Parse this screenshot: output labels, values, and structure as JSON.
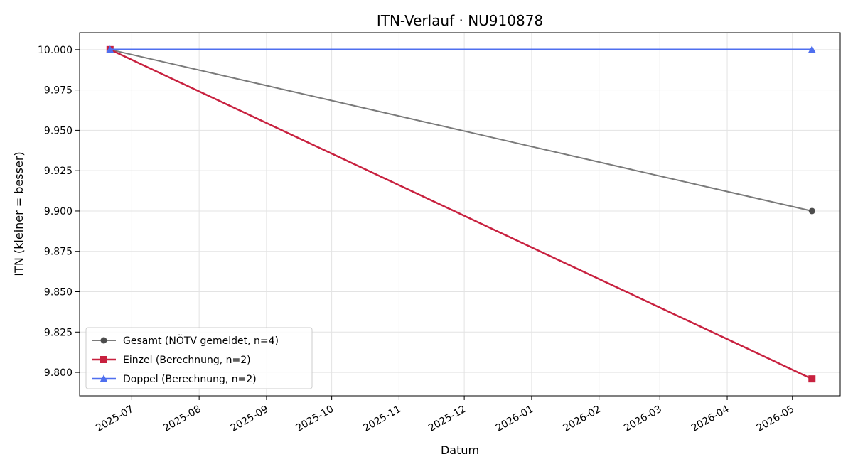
{
  "chart_data": {
    "type": "line",
    "title": "ITN-Verlauf · NU910878",
    "xlabel": "Datum",
    "ylabel": "ITN  (kleiner = besser)",
    "xlim": [
      "2025-06-07",
      "2026-05-23"
    ],
    "ylim": [
      9.7855,
      10.0105
    ],
    "x_ticks": [
      "2025-07",
      "2025-08",
      "2025-09",
      "2025-10",
      "2025-11",
      "2025-12",
      "2026-01",
      "2026-02",
      "2026-03",
      "2026-04",
      "2026-05"
    ],
    "y_ticks": [
      "10.000",
      "9.975",
      "9.950",
      "9.925",
      "9.900",
      "9.875",
      "9.850",
      "9.825",
      "9.800"
    ],
    "grid": true,
    "legend_position": "lower-left",
    "series": [
      {
        "name": "Gesamt (NÖTV gemeldet, n=4)",
        "color": "#4d4d4d",
        "marker": "circle",
        "points": [
          [
            "2025-06-21",
            10.0
          ],
          [
            "2026-05-10",
            9.9
          ]
        ]
      },
      {
        "name": "Einzel (Berechnung, n=2)",
        "color": "#c8213f",
        "marker": "square",
        "points": [
          [
            "2025-06-21",
            10.0
          ],
          [
            "2026-05-10",
            9.796
          ]
        ]
      },
      {
        "name": "Doppel (Berechnung, n=2)",
        "color": "#4f6fef",
        "marker": "triangle",
        "points": [
          [
            "2025-06-21",
            10.0
          ],
          [
            "2026-05-10",
            10.0
          ]
        ]
      }
    ]
  }
}
